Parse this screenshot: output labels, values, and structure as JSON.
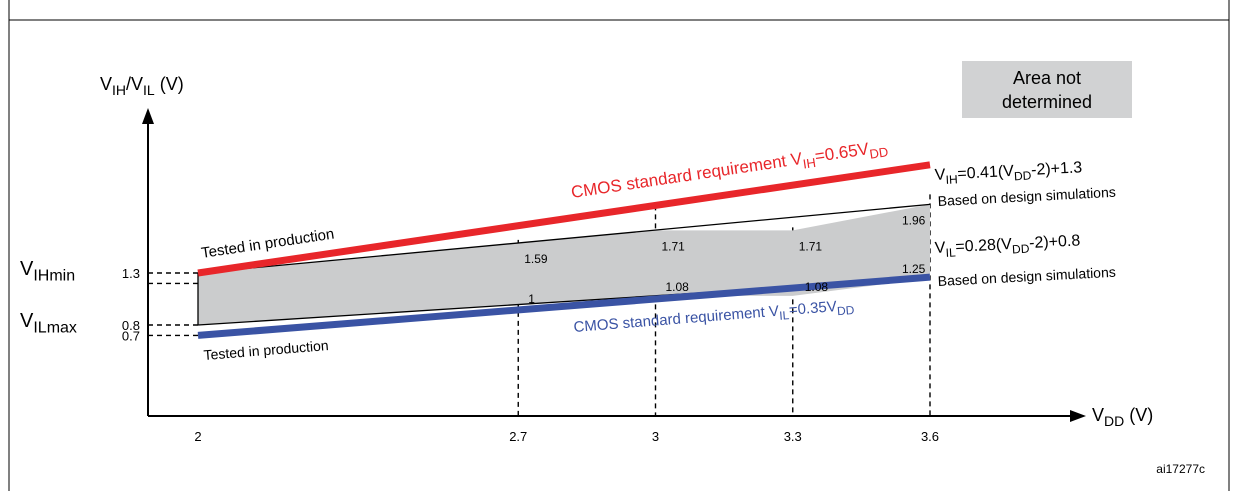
{
  "header": {
    "clipped_title_text": ""
  },
  "chart_data": {
    "type": "line",
    "xlabel": {
      "main": "V",
      "sub": "DD",
      "unit": " (V)"
    },
    "ylabel": {
      "m1": "V",
      "s1": "IH",
      "m2": "/V",
      "s2": "IL",
      "unit": " (V)"
    },
    "x_ticks": [
      2,
      2.7,
      3,
      3.3,
      3.6
    ],
    "x_tick_labels": [
      "2",
      "2.7",
      "3",
      "3.3",
      "3.6"
    ],
    "x_range": [
      2,
      3.6
    ],
    "y_range": [
      0,
      2.5
    ],
    "y_ticks": [
      {
        "value": 1.3,
        "label": "1.3",
        "name_main": "V",
        "name_sub": "IHmin"
      },
      {
        "value": 0.8,
        "label": "0.8",
        "name_main": "V",
        "name_sub": "ILmax"
      },
      {
        "value": 0.7,
        "label": "0.7",
        "name_main": "",
        "name_sub": ""
      }
    ],
    "h_guides": [
      1.3,
      1.2,
      0.8,
      0.7
    ],
    "series": [
      {
        "name": "CMOS standard requirement VIH=0.65VDD",
        "color": "#e8262a",
        "x": [
          2,
          3.6
        ],
        "y": [
          1.3,
          2.34
        ],
        "label_parts": [
          "CMOS standard requirement V",
          "IH",
          "=0.65V",
          "DD"
        ],
        "prod_label": "Tested in production"
      },
      {
        "name": "CMOS standard requirement VIL=0.35VDD",
        "color": "#3a53a4",
        "x": [
          2,
          3.6
        ],
        "y": [
          0.7,
          1.26
        ],
        "label_parts": [
          "CMOS standard requirement V",
          "IL",
          "=0.35V",
          "DD"
        ],
        "prod_label": "Tested in production"
      }
    ],
    "band": {
      "fill": "#cbcccd",
      "upper": {
        "x": [
          2,
          2.7,
          3,
          3.3,
          3.6
        ],
        "y": [
          1.3,
          1.59,
          1.71,
          1.71,
          1.96
        ]
      },
      "lower": {
        "x": [
          2,
          2.7,
          3,
          3.3,
          3.6
        ],
        "y": [
          0.8,
          1,
          1.08,
          1.08,
          1.25
        ]
      },
      "upper_labels": [
        {
          "x": 2.7,
          "y": 1.59,
          "text": "1.59"
        },
        {
          "x": 3,
          "y": 1.71,
          "text": "1.71"
        },
        {
          "x": 3.3,
          "y": 1.71,
          "text": "1.71"
        },
        {
          "x": 3.6,
          "y": 1.96,
          "text": "1.96"
        }
      ],
      "lower_labels": [
        {
          "x": 2.7,
          "y": 1,
          "text": "1"
        },
        {
          "x": 3,
          "y": 1.08,
          "text": "1.08"
        },
        {
          "x": 3.3,
          "y": 1.08,
          "text": "1.08"
        },
        {
          "x": 3.6,
          "y": 1.25,
          "text": "1.25"
        }
      ]
    },
    "formulas": {
      "vih": {
        "p1": "V",
        "s1": "IH",
        "p2": "=0.41(V",
        "s2": "DD",
        "p3": "-2)+1.3",
        "note": "Based on design simulations"
      },
      "vil": {
        "p1": "V",
        "s1": "IL",
        "p2": "=0.28(V",
        "s2": "DD",
        "p3": "-2)+0.8",
        "note": "Based on design simulations"
      }
    },
    "area_box": {
      "line1": "Area not",
      "line2": "determined",
      "fill": "#d1d2d3"
    },
    "figure_id": "ai17277c"
  }
}
